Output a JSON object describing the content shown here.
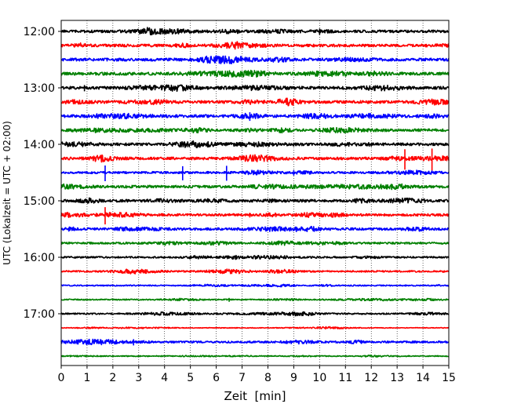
{
  "chart_data": {
    "type": "line",
    "subtype": "seismogram-helicorder",
    "title": "",
    "xlabel": "Zeit  [min]",
    "ylabel": "UTC (Lokalzeit = UTC + 02:00)",
    "xlim": [
      0,
      15
    ],
    "x_ticks": [
      "0",
      "1",
      "2",
      "3",
      "4",
      "5",
      "6",
      "7",
      "8",
      "9",
      "10",
      "11",
      "12",
      "13",
      "14",
      "15"
    ],
    "y_ticks": [
      "12:00",
      "13:00",
      "14:00",
      "15:00",
      "16:00",
      "17:00"
    ],
    "grid": {
      "x": true,
      "y": false,
      "style": "dotted"
    },
    "trace_start": "12:00",
    "trace_interval_min": 15,
    "trace_colors": [
      "#000000",
      "#ff0000",
      "#0000ff",
      "#008000"
    ],
    "traces": [
      {
        "start": "12:00",
        "color": "#000000",
        "amplitude": 2.2,
        "spikes": [
          {
            "min": 10.0,
            "height": 8
          }
        ]
      },
      {
        "start": "12:15",
        "color": "#ff0000",
        "amplitude": 2.2,
        "spikes": []
      },
      {
        "start": "12:30",
        "color": "#0000ff",
        "amplitude": 2.4,
        "spikes": []
      },
      {
        "start": "12:45",
        "color": "#008000",
        "amplitude": 2.4,
        "spikes": [
          {
            "min": 5.4,
            "height": 6
          }
        ]
      },
      {
        "start": "13:00",
        "color": "#000000",
        "amplitude": 2.4,
        "spikes": [
          {
            "min": 0.9,
            "height": 8
          }
        ]
      },
      {
        "start": "13:15",
        "color": "#ff0000",
        "amplitude": 2.4,
        "spikes": []
      },
      {
        "start": "13:30",
        "color": "#0000ff",
        "amplitude": 2.4,
        "spikes": [
          {
            "min": 7.3,
            "height": 11
          }
        ]
      },
      {
        "start": "13:45",
        "color": "#008000",
        "amplitude": 2.2,
        "spikes": []
      },
      {
        "start": "14:00",
        "color": "#000000",
        "amplitude": 2.2,
        "spikes": [
          {
            "min": 9.0,
            "height": 5
          }
        ]
      },
      {
        "start": "14:15",
        "color": "#ff0000",
        "amplitude": 2.2,
        "spikes": [
          {
            "min": 13.3,
            "height": 26
          },
          {
            "min": 14.35,
            "height": 28
          }
        ]
      },
      {
        "start": "14:30",
        "color": "#0000ff",
        "amplitude": 1.8,
        "spikes": [
          {
            "min": 1.7,
            "height": 20
          },
          {
            "min": 4.7,
            "height": 18
          },
          {
            "min": 6.4,
            "height": 19
          },
          {
            "min": 9.0,
            "height": 7
          }
        ]
      },
      {
        "start": "14:45",
        "color": "#008000",
        "amplitude": 2.2,
        "spikes": []
      },
      {
        "start": "15:00",
        "color": "#000000",
        "amplitude": 2.2,
        "spikes": []
      },
      {
        "start": "15:15",
        "color": "#ff0000",
        "amplitude": 2.0,
        "spikes": [
          {
            "min": 1.7,
            "height": 22
          },
          {
            "min": 7.3,
            "height": 6
          }
        ]
      },
      {
        "start": "15:30",
        "color": "#0000ff",
        "amplitude": 2.0,
        "spikes": [
          {
            "min": 9.1,
            "height": 7
          }
        ]
      },
      {
        "start": "15:45",
        "color": "#008000",
        "amplitude": 1.6,
        "spikes": []
      },
      {
        "start": "16:00",
        "color": "#000000",
        "amplitude": 1.4,
        "spikes": []
      },
      {
        "start": "16:15",
        "color": "#ff0000",
        "amplitude": 1.4,
        "spikes": [
          {
            "min": 6.6,
            "height": 6
          }
        ]
      },
      {
        "start": "16:30",
        "color": "#0000ff",
        "amplitude": 1.0,
        "spikes": []
      },
      {
        "start": "16:45",
        "color": "#008000",
        "amplitude": 1.0,
        "spikes": [
          {
            "min": 6.5,
            "height": 5
          }
        ]
      },
      {
        "start": "17:00",
        "color": "#000000",
        "amplitude": 1.2,
        "spikes": []
      },
      {
        "start": "17:15",
        "color": "#ff0000",
        "amplitude": 0.6,
        "spikes": []
      },
      {
        "start": "17:30",
        "color": "#0000ff",
        "amplitude": 1.6,
        "spikes": [
          {
            "min": 2.8,
            "height": 8
          }
        ]
      },
      {
        "start": "17:45",
        "color": "#008000",
        "amplitude": 0.8,
        "spikes": []
      }
    ]
  }
}
